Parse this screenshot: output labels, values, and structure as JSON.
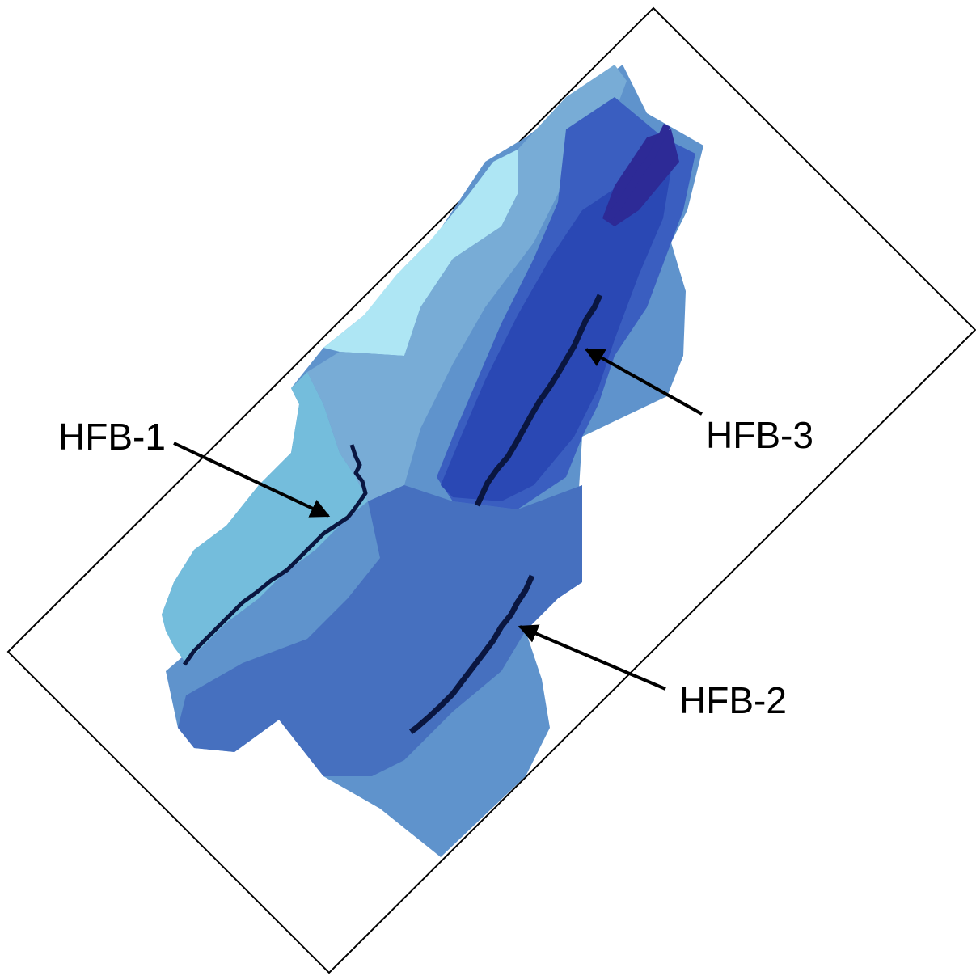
{
  "labels": {
    "hfb1": "HFB-1",
    "hfb2": "HFB-2",
    "hfb3": "HFB-3"
  },
  "legend_colors": {
    "zone_lightest": "#aee6f4",
    "zone_light": "#74bddc",
    "zone_medium_light": "#78acd6",
    "zone_medium": "#5f93cc",
    "zone_medium_dark": "#4670bf",
    "zone_dark": "#3a5ec0",
    "zone_darker": "#2a48b4",
    "zone_darkest": "#2d2a96",
    "barrier": "#0a1640",
    "domain_outline": "#000000"
  }
}
